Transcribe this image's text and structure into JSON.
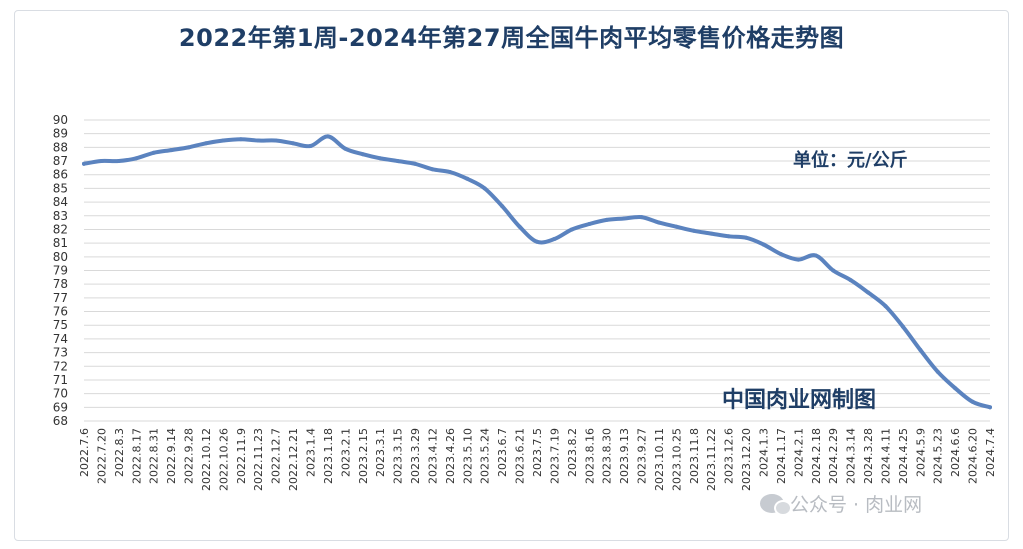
{
  "header": {
    "title": "2022年第1周-2024年第27周全国牛肉平均零售价格走势图"
  },
  "annotations": {
    "unit": "单位：元/公斤",
    "maker": "中国肉业网制图"
  },
  "watermark": {
    "text": "公众号 · 肉业网",
    "icon": "wechat-official-account-icon"
  },
  "colors": {
    "line": "#5b83bf",
    "title": "#1f3e66",
    "grid": "#d9d9d9"
  },
  "chart_data": {
    "type": "line",
    "title": "2022年第1周-2024年第27周全国牛肉平均零售价格走势图",
    "xlabel": "",
    "ylabel": "",
    "ylim": [
      68,
      90
    ],
    "y_ticks": [
      68,
      69,
      70,
      71,
      72,
      73,
      74,
      75,
      76,
      77,
      78,
      79,
      80,
      81,
      82,
      83,
      84,
      85,
      86,
      87,
      88,
      89,
      90
    ],
    "grid": true,
    "x_tick_labels": [
      "2022.7.6",
      "2022.7.20",
      "2022.8.3",
      "2022.8.17",
      "2022.8.31",
      "2022.9.14",
      "2022.9.28",
      "2022.10.12",
      "2022.10.26",
      "2022.11.9",
      "2022.11.23",
      "2022.12.7",
      "2022.12.21",
      "2023.1.4",
      "2023.1.18",
      "2023.2.1",
      "2023.2.15",
      "2023.3.1",
      "2023.3.15",
      "2023.3.29",
      "2023.4.12",
      "2023.4.26",
      "2023.5.10",
      "2023.5.24",
      "2023.6.7",
      "2023.6.21",
      "2023.7.5",
      "2023.7.19",
      "2023.8.2",
      "2023.8.16",
      "2023.8.30",
      "2023.9.13",
      "2023.9.27",
      "2023.10.11",
      "2023.10.25",
      "2023.11.8",
      "2023.11.22",
      "2023.12.6",
      "2023.12.20",
      "2024.1.3",
      "2024.1.17",
      "2024.2.1",
      "2024.2.18",
      "2024.2.29",
      "2024.3.14",
      "2024.3.28",
      "2024.4.11",
      "2024.4.25",
      "2024.5.9",
      "2024.5.23",
      "2024.6.6",
      "2024.6.20",
      "2024.7.4"
    ],
    "series": [
      {
        "color": "#5b83bf",
        "values": [
          86.8,
          87.0,
          87.0,
          87.2,
          87.6,
          87.8,
          88.0,
          88.3,
          88.5,
          88.6,
          88.5,
          88.5,
          88.3,
          88.1,
          88.8,
          87.9,
          87.5,
          87.2,
          87.0,
          86.8,
          86.4,
          86.2,
          85.7,
          85.0,
          83.7,
          82.2,
          81.1,
          81.3,
          82.0,
          82.4,
          82.7,
          82.8,
          82.9,
          82.5,
          82.2,
          81.9,
          81.7,
          81.5,
          81.4,
          80.9,
          80.2,
          79.8,
          80.1,
          79.0,
          78.3,
          77.4,
          76.4,
          74.9,
          73.2,
          71.6,
          70.4,
          69.4,
          69.0
        ]
      }
    ]
  }
}
